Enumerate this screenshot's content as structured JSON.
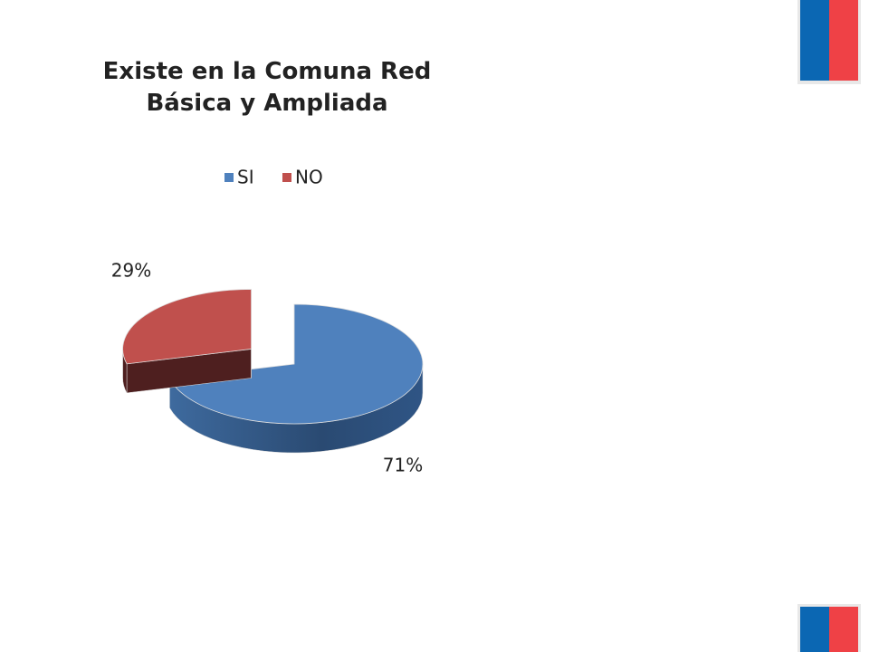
{
  "chart_data": {
    "type": "pie",
    "title": "Existe en la Comuna Red Básica y Ampliada",
    "categories": [
      "SI",
      "NO"
    ],
    "values": [
      71,
      29
    ],
    "value_labels": [
      "71%",
      "29%"
    ],
    "colors": [
      "#4f81bd",
      "#c0504d"
    ],
    "legend": "top"
  }
}
